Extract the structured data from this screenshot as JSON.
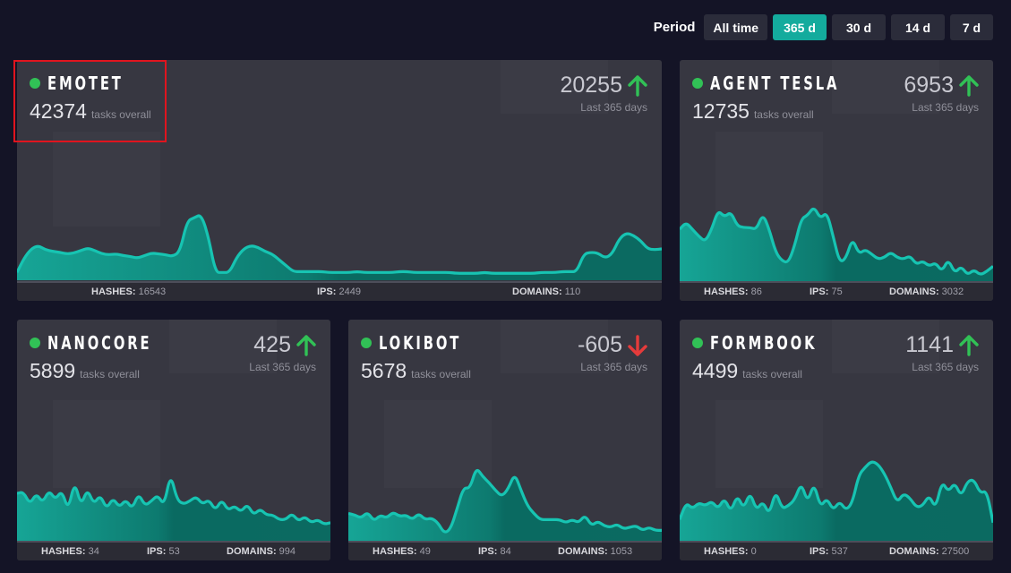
{
  "period": {
    "label": "Period",
    "options": [
      "All time",
      "365 d",
      "30 d",
      "14 d",
      "7 d"
    ],
    "selected": "365 d"
  },
  "colors": {
    "accent": "#14ab9d",
    "up": "#31c156",
    "down": "#e53b3b",
    "dot": "#31c156",
    "highlight": "#e0141e"
  },
  "cards": [
    {
      "name": "EMOTET",
      "total": "42374",
      "total_suffix": "tasks overall",
      "delta": "20255",
      "trend": "up",
      "delta_sub": "Last 365 days",
      "stats": {
        "hashes_label": "HASHES:",
        "hashes": "16543",
        "ips_label": "IPS:",
        "ips": "2449",
        "domains_label": "DOMAINS:",
        "domains": "110"
      },
      "series": [
        0.05,
        0.22,
        0.33,
        0.37,
        0.32,
        0.3,
        0.29,
        0.27,
        0.28,
        0.31,
        0.34,
        0.31,
        0.27,
        0.26,
        0.27,
        0.25,
        0.24,
        0.22,
        0.25,
        0.28,
        0.27,
        0.26,
        0.24,
        0.3,
        0.66,
        0.7,
        0.74,
        0.48,
        0.05,
        0.05,
        0.05,
        0.23,
        0.33,
        0.37,
        0.35,
        0.3,
        0.27,
        0.2,
        0.13,
        0.06,
        0.06,
        0.06,
        0.06,
        0.06,
        0.05,
        0.05,
        0.05,
        0.05,
        0.06,
        0.05,
        0.05,
        0.05,
        0.05,
        0.05,
        0.06,
        0.06,
        0.05,
        0.05,
        0.05,
        0.05,
        0.05,
        0.05,
        0.04,
        0.04,
        0.04,
        0.04,
        0.05,
        0.04,
        0.04,
        0.04,
        0.04,
        0.04,
        0.04,
        0.04,
        0.05,
        0.05,
        0.05,
        0.06,
        0.06,
        0.06,
        0.27,
        0.29,
        0.28,
        0.22,
        0.27,
        0.45,
        0.52,
        0.49,
        0.43,
        0.33,
        0.32,
        0.33
      ]
    },
    {
      "name": "AGENT TESLA",
      "total": "12735",
      "total_suffix": "tasks overall",
      "delta": "6953",
      "trend": "up",
      "delta_sub": "Last 365 days",
      "stats": {
        "hashes_label": "HASHES:",
        "hashes": "86",
        "ips_label": "IPS:",
        "ips": "75",
        "domains_label": "DOMAINS:",
        "domains": "3032"
      },
      "series": [
        0.58,
        0.66,
        0.58,
        0.5,
        0.44,
        0.58,
        0.8,
        0.72,
        0.78,
        0.62,
        0.6,
        0.6,
        0.58,
        0.76,
        0.58,
        0.32,
        0.22,
        0.2,
        0.4,
        0.7,
        0.74,
        0.84,
        0.7,
        0.78,
        0.5,
        0.2,
        0.25,
        0.48,
        0.3,
        0.35,
        0.3,
        0.24,
        0.26,
        0.32,
        0.26,
        0.24,
        0.28,
        0.18,
        0.22,
        0.16,
        0.2,
        0.1,
        0.24,
        0.08,
        0.16,
        0.06,
        0.12,
        0.06,
        0.1,
        0.16
      ]
    },
    {
      "name": "NANOCORE",
      "total": "5899",
      "total_suffix": "tasks overall",
      "delta": "425",
      "trend": "up",
      "delta_sub": "Last 365 days",
      "stats": {
        "hashes_label": "HASHES:",
        "hashes": "34",
        "ips_label": "IPS:",
        "ips": "53",
        "domains_label": "DOMAINS:",
        "domains": "994"
      },
      "series": [
        0.58,
        0.6,
        0.44,
        0.58,
        0.46,
        0.62,
        0.5,
        0.62,
        0.36,
        0.74,
        0.42,
        0.64,
        0.44,
        0.56,
        0.38,
        0.52,
        0.4,
        0.5,
        0.38,
        0.58,
        0.42,
        0.48,
        0.56,
        0.42,
        0.84,
        0.5,
        0.44,
        0.48,
        0.54,
        0.44,
        0.5,
        0.36,
        0.5,
        0.36,
        0.42,
        0.34,
        0.44,
        0.3,
        0.38,
        0.3,
        0.3,
        0.24,
        0.24,
        0.32,
        0.22,
        0.28,
        0.2,
        0.24,
        0.18,
        0.2
      ]
    },
    {
      "name": "LOKIBOT",
      "total": "5678",
      "total_suffix": "tasks overall",
      "delta": "-605",
      "trend": "down",
      "delta_sub": "Last 365 days",
      "stats": {
        "hashes_label": "HASHES:",
        "hashes": "49",
        "ips_label": "IPS:",
        "ips": "84",
        "domains_label": "DOMAINS:",
        "domains": "1053"
      },
      "series": [
        0.32,
        0.3,
        0.26,
        0.34,
        0.22,
        0.3,
        0.26,
        0.34,
        0.28,
        0.3,
        0.24,
        0.32,
        0.24,
        0.26,
        0.2,
        0.06,
        0.12,
        0.38,
        0.66,
        0.64,
        0.92,
        0.8,
        0.72,
        0.62,
        0.54,
        0.64,
        0.84,
        0.62,
        0.42,
        0.32,
        0.24,
        0.24,
        0.24,
        0.24,
        0.2,
        0.24,
        0.2,
        0.3,
        0.16,
        0.22,
        0.16,
        0.14,
        0.18,
        0.12,
        0.14,
        0.16,
        0.1,
        0.14,
        0.1,
        0.1
      ]
    },
    {
      "name": "FORMBOOK",
      "total": "4499",
      "total_suffix": "tasks overall",
      "delta": "1141",
      "trend": "up",
      "delta_sub": "Last 365 days",
      "stats": {
        "hashes_label": "HASHES:",
        "hashes": "0",
        "ips_label": "IPS:",
        "ips": "537",
        "domains_label": "DOMAINS:",
        "domains": "27500"
      },
      "series": [
        0.24,
        0.46,
        0.38,
        0.46,
        0.42,
        0.48,
        0.38,
        0.52,
        0.34,
        0.56,
        0.38,
        0.6,
        0.36,
        0.48,
        0.3,
        0.62,
        0.38,
        0.42,
        0.5,
        0.72,
        0.46,
        0.72,
        0.4,
        0.52,
        0.36,
        0.48,
        0.36,
        0.46,
        0.82,
        0.92,
        1.0,
        0.96,
        0.84,
        0.66,
        0.46,
        0.58,
        0.52,
        0.4,
        0.42,
        0.56,
        0.38,
        0.74,
        0.6,
        0.72,
        0.54,
        0.74,
        0.76,
        0.58,
        0.62,
        0.2
      ]
    }
  ]
}
